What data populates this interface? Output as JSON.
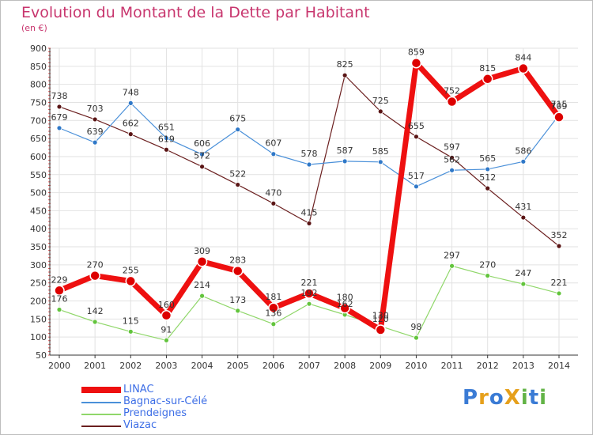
{
  "title": "Evolution du Montant de la Dette par Habitant",
  "unit": "(en €)",
  "logo": {
    "text": "ProXiti",
    "letters": [
      "P",
      "r",
      "o",
      "X",
      "i",
      "t",
      "i"
    ],
    "colors": [
      "#3a7bd5",
      "#e6a01b",
      "#3a7bd5",
      "#e6a01b",
      "#62b346",
      "#3a7bd5",
      "#62b346"
    ]
  },
  "chart_data": {
    "type": "line",
    "title": "Evolution du Montant de la Dette par Habitant",
    "ylabel": "(en €)",
    "xlabel": "",
    "ylim": [
      50,
      900
    ],
    "yticks": [
      50,
      100,
      150,
      200,
      250,
      300,
      350,
      400,
      450,
      500,
      550,
      600,
      650,
      700,
      750,
      800,
      850,
      900
    ],
    "grid": true,
    "legend": "bottom-left",
    "x": [
      2000,
      2001,
      2002,
      2003,
      2004,
      2005,
      2006,
      2007,
      2008,
      2009,
      2010,
      2011,
      2012,
      2013,
      2014
    ],
    "series": [
      {
        "name": "Viazac",
        "color": "#6b1f1f",
        "marker": "#5a1515",
        "width": 1.2,
        "radius": 3,
        "values": [
          738,
          703,
          662,
          619,
          572,
          522,
          470,
          415,
          825,
          725,
          655,
          597,
          512,
          431,
          352
        ]
      },
      {
        "name": "Bagnac-sur-Célé",
        "color": "#4a90d9",
        "marker": "#2f78c8",
        "width": 1.2,
        "radius": 3,
        "values": [
          679,
          639,
          748,
          651,
          606,
          675,
          607,
          578,
          587,
          585,
          517,
          562,
          565,
          586,
          715
        ]
      },
      {
        "name": "Prendeignes",
        "color": "#90d76a",
        "marker": "#62c43c",
        "width": 1.2,
        "radius": 3,
        "values": [
          176,
          142,
          115,
          91,
          214,
          173,
          136,
          192,
          162,
          130,
          98,
          297,
          270,
          247,
          221
        ]
      },
      {
        "name": "LINAC",
        "color": "#ee1010",
        "marker": "#dd0000",
        "width": 7,
        "radius": 6,
        "values": [
          229,
          270,
          255,
          160,
          309,
          283,
          181,
          221,
          180,
          120,
          859,
          752,
          815,
          844,
          709
        ]
      }
    ]
  }
}
